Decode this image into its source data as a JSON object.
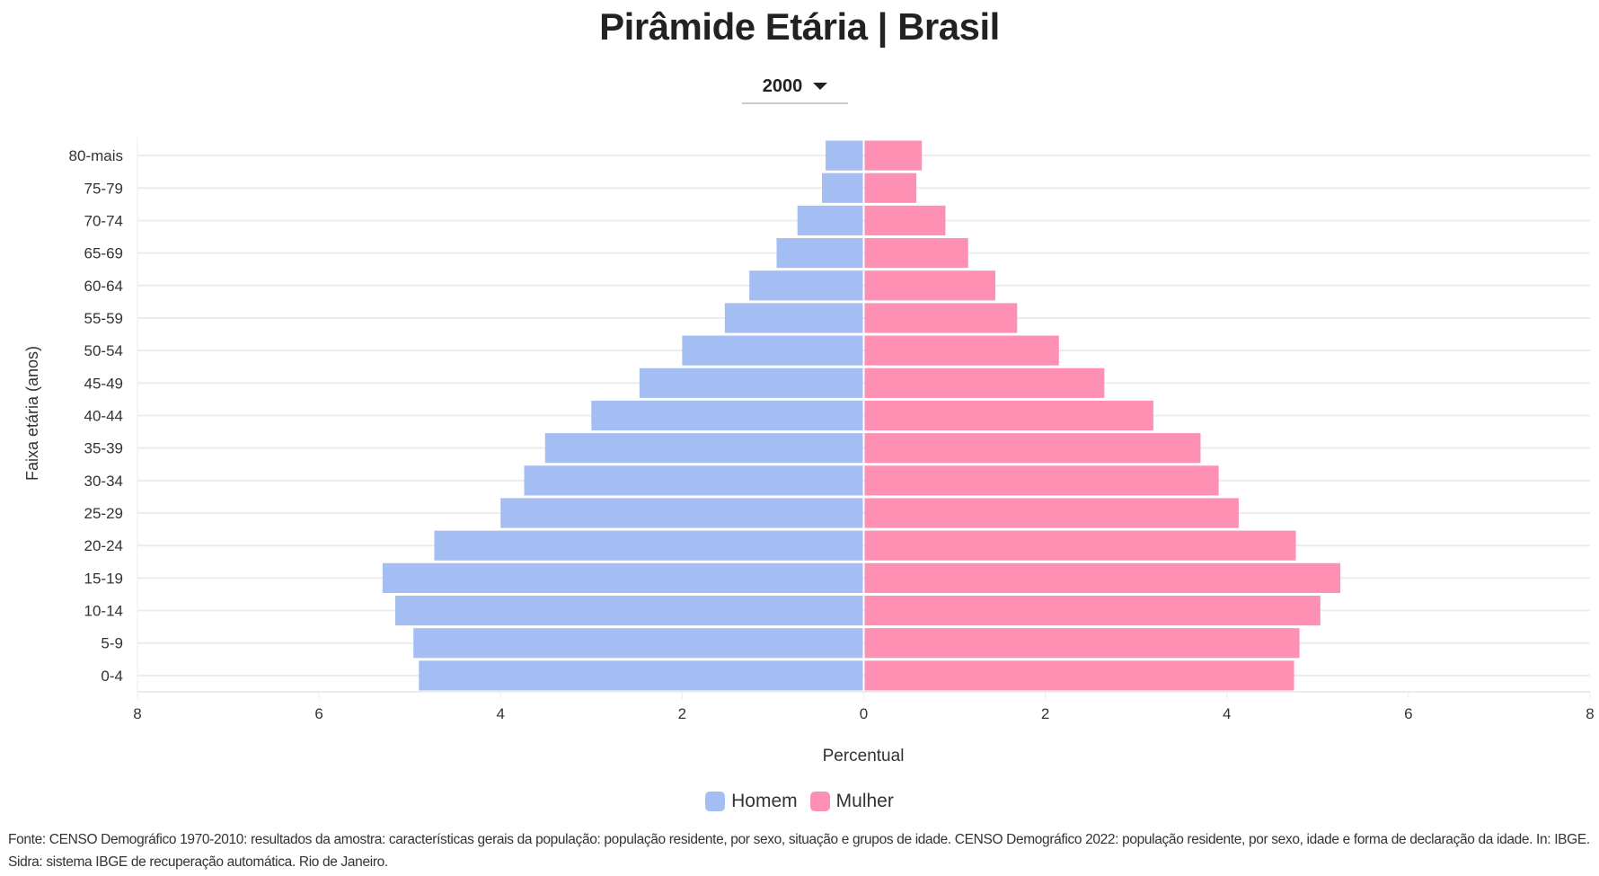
{
  "title": "Pirâmide Etária | Brasil",
  "year_select": {
    "selected": "2000"
  },
  "colors": {
    "homem": "#a4bdf2",
    "mulher": "#fe91b3",
    "grid": "#ececec"
  },
  "footer": "Fonte: CENSO Demográfico 1970-2010: resultados da amostra: características gerais da população: população residente, por sexo, situação e grupos de idade. CENSO Demográfico 2022: população residente, por sexo, idade e forma de declaração da idade. In: IBGE. Sidra: sistema IBGE de recuperação automática. Rio de Janeiro.",
  "chart_data": {
    "type": "bar",
    "orientation": "horizontal-population-pyramid",
    "xlabel": "Percentual",
    "ylabel": "Faixa etária (anos)",
    "xlim": [
      -8,
      8
    ],
    "x_ticks": [
      "8",
      "6",
      "4",
      "2",
      "0",
      "2",
      "4",
      "6",
      "8"
    ],
    "grid": true,
    "legend_position": "bottom",
    "categories": [
      "80-mais",
      "75-79",
      "70-74",
      "65-69",
      "60-64",
      "55-59",
      "50-54",
      "45-49",
      "40-44",
      "35-39",
      "30-34",
      "25-29",
      "20-24",
      "15-19",
      "10-14",
      "5-9",
      "0-4"
    ],
    "series": [
      {
        "name": "Homem",
        "side": "left",
        "values": [
          0.42,
          0.46,
          0.73,
          0.96,
          1.26,
          1.53,
          2.0,
          2.47,
          3.0,
          3.51,
          3.74,
          4.0,
          4.73,
          5.3,
          5.16,
          4.96,
          4.9
        ]
      },
      {
        "name": "Mulher",
        "side": "right",
        "values": [
          0.64,
          0.58,
          0.9,
          1.15,
          1.45,
          1.69,
          2.15,
          2.65,
          3.19,
          3.71,
          3.91,
          4.13,
          4.76,
          5.25,
          5.03,
          4.8,
          4.74
        ]
      }
    ]
  }
}
